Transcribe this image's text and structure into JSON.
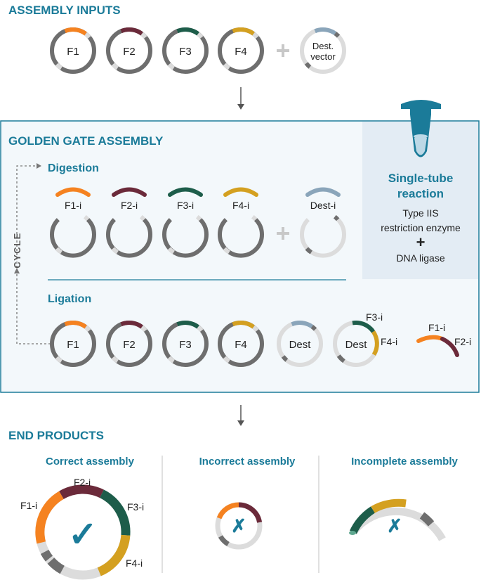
{
  "colors": {
    "teal": "#1b7b99",
    "orange": "#f58220",
    "maroon": "#6b2a3a",
    "green": "#1d5d4a",
    "gold": "#d4a020",
    "steel": "#8aa5ba",
    "dark_gray": "#6e6e6e",
    "mid_gray": "#8a8a8a",
    "light_gray": "#dcdcdc",
    "panel_bg": "#f3f8fb",
    "panel_border": "#1b7b99",
    "side_panel_bg": "#e3ecf4"
  },
  "icons": {
    "tube": "microcentrifuge-tube-icon",
    "check": "checkmark-icon",
    "cross": "cross-icon",
    "plus": "plus-icon",
    "arrow": "down-arrow-icon"
  },
  "inputs": {
    "heading": "ASSEMBLY INPUTS",
    "fragments": [
      "F1",
      "F2",
      "F3",
      "F4"
    ],
    "vector_line1": "Dest.",
    "vector_line2": "vector"
  },
  "golden_gate": {
    "heading": "GOLDEN GATE ASSEMBLY",
    "cycle_label": "CYCLE",
    "digestion": {
      "heading": "Digestion",
      "inserts": [
        "F1-i",
        "F2-i",
        "F3-i",
        "F4-i"
      ],
      "dest_insert": "Dest-i"
    },
    "ligation": {
      "heading": "Ligation",
      "fragments": [
        "F1",
        "F2",
        "F3",
        "F4"
      ],
      "dest": "Dest",
      "partial_dest": "Dest",
      "partial_labels": [
        "F3-i",
        "F4-i"
      ],
      "arc_labels": [
        "F1-i",
        "F2-i"
      ]
    },
    "reaction": {
      "title_line1": "Single-tube",
      "title_line2": "reaction",
      "line1": "Type IIS",
      "line2": "restriction enzyme",
      "plus": "+",
      "line3": "DNA ligase"
    }
  },
  "end_products": {
    "heading": "END PRODUCTS",
    "correct": {
      "title": "Correct assembly",
      "labels": [
        "F1-i",
        "F2-i",
        "F3-i",
        "F4-i"
      ],
      "mark": "✓"
    },
    "incorrect": {
      "title": "Incorrect assembly",
      "mark": "✗"
    },
    "incomplete": {
      "title": "Incomplete assembly",
      "mark": "✗"
    }
  }
}
